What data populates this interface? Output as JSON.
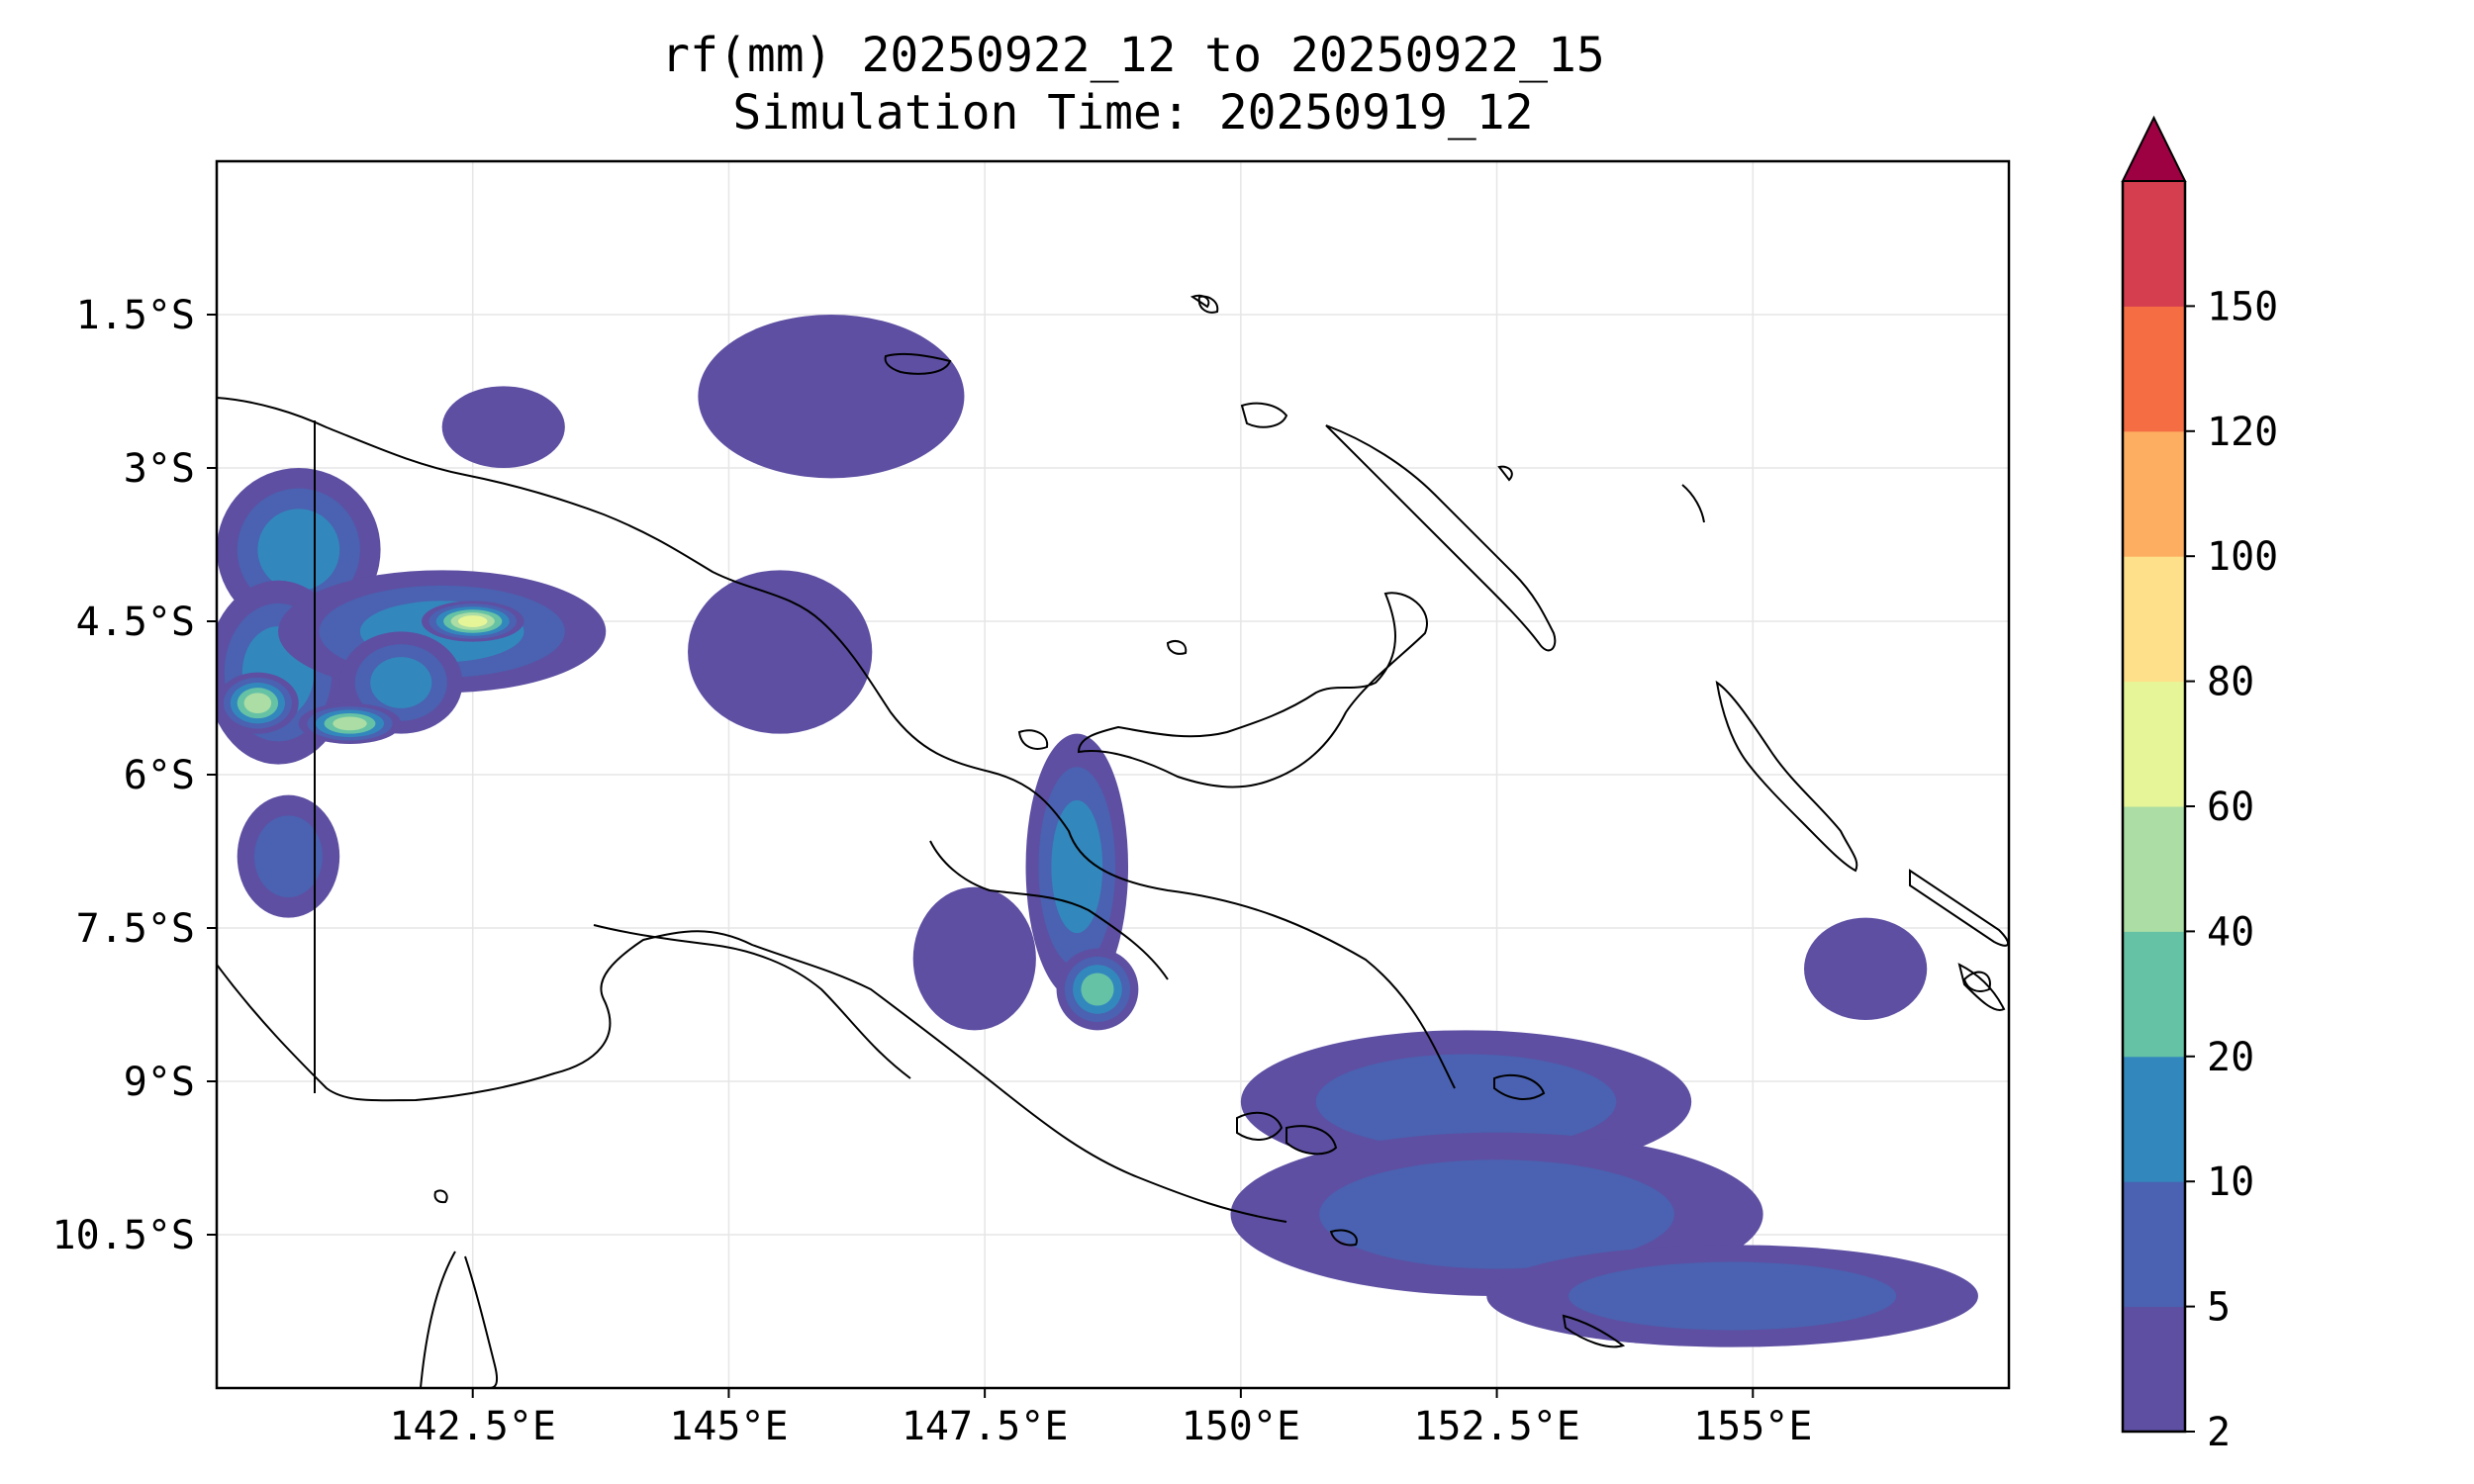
{
  "title": "rf(mm) 20250922_12 to 20250922_15",
  "subtitle": "Simulation Time: 20250919_12",
  "map": {
    "lon_range": [
      140.0,
      157.5
    ],
    "lat_range": [
      -12.0,
      -0.0
    ],
    "lon_ticks": [
      {
        "value": 142.5,
        "label": "142.5°E"
      },
      {
        "value": 145,
        "label": "145°E"
      },
      {
        "value": 147.5,
        "label": "147.5°E"
      },
      {
        "value": 150,
        "label": "150°E"
      },
      {
        "value": 152.5,
        "label": "152.5°E"
      },
      {
        "value": 155,
        "label": "155°E"
      }
    ],
    "lat_ticks": [
      {
        "value": -1.5,
        "label": "1.5°S"
      },
      {
        "value": -3,
        "label": "3°S"
      },
      {
        "value": -4.5,
        "label": "4.5°S"
      },
      {
        "value": -6,
        "label": "6°S"
      },
      {
        "value": -7.5,
        "label": "7.5°S"
      },
      {
        "value": -9,
        "label": "9°S"
      },
      {
        "value": -10.5,
        "label": "10.5°S"
      }
    ],
    "grid": true,
    "coastline_color": "#000000",
    "gridline_color": "#e6e6e6"
  },
  "colorbar": {
    "levels": [
      "2",
      "5",
      "10",
      "20",
      "40",
      "60",
      "80",
      "100",
      "120",
      "150"
    ],
    "colors": [
      "#5e4fa2",
      "#4a62b1",
      "#3288bd",
      "#66c2a5",
      "#abdda4",
      "#e6f598",
      "#fee08b",
      "#fdae61",
      "#f46d43",
      "#d53e4f"
    ],
    "extend_color": "#9e0142",
    "extend": "max"
  },
  "rainfall_blobs": [
    {
      "lon": 140.8,
      "lat": -3.8,
      "rx": 0.8,
      "ry": 0.8,
      "level": 2
    },
    {
      "lon": 140.6,
      "lat": -5.0,
      "rx": 0.7,
      "ry": 0.9,
      "level": 2
    },
    {
      "lon": 142.2,
      "lat": -4.6,
      "rx": 1.6,
      "ry": 0.6,
      "level": 2
    },
    {
      "lon": 142.5,
      "lat": -4.5,
      "rx": 0.5,
      "ry": 0.2,
      "level": 5
    },
    {
      "lon": 141.3,
      "lat": -5.5,
      "rx": 0.5,
      "ry": 0.2,
      "level": 4
    },
    {
      "lon": 140.4,
      "lat": -5.3,
      "rx": 0.4,
      "ry": 0.3,
      "level": 4
    },
    {
      "lon": 141.8,
      "lat": -5.1,
      "rx": 0.6,
      "ry": 0.5,
      "level": 2
    },
    {
      "lon": 140.7,
      "lat": -6.8,
      "rx": 0.5,
      "ry": 0.6,
      "level": 1
    },
    {
      "lon": 146.0,
      "lat": -2.3,
      "rx": 1.3,
      "ry": 0.8,
      "level": 0
    },
    {
      "lon": 145.5,
      "lat": -4.8,
      "rx": 0.9,
      "ry": 0.8,
      "level": 0
    },
    {
      "lon": 148.4,
      "lat": -6.9,
      "rx": 0.5,
      "ry": 1.3,
      "level": 2
    },
    {
      "lon": 148.6,
      "lat": -8.1,
      "rx": 0.4,
      "ry": 0.4,
      "level": 3
    },
    {
      "lon": 147.4,
      "lat": -7.8,
      "rx": 0.6,
      "ry": 0.7,
      "level": 0
    },
    {
      "lon": 152.2,
      "lat": -9.2,
      "rx": 2.2,
      "ry": 0.7,
      "level": 1
    },
    {
      "lon": 152.5,
      "lat": -10.3,
      "rx": 2.6,
      "ry": 0.8,
      "level": 1
    },
    {
      "lon": 154.8,
      "lat": -11.1,
      "rx": 2.4,
      "ry": 0.5,
      "level": 1
    },
    {
      "lon": 156.1,
      "lat": -7.9,
      "rx": 0.6,
      "ry": 0.5,
      "level": 0
    },
    {
      "lon": 142.8,
      "lat": -2.6,
      "rx": 0.6,
      "ry": 0.4,
      "level": 0
    }
  ]
}
